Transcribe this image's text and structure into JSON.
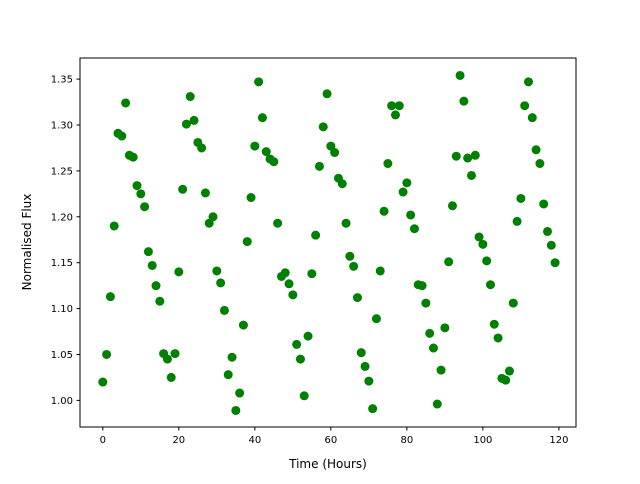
{
  "chart_data": {
    "type": "scatter",
    "title": "",
    "xlabel": "Time (Hours)",
    "ylabel": "Normalised Flux",
    "xlim": [
      -6,
      124.5
    ],
    "ylim": [
      0.971,
      1.373
    ],
    "xticks": [
      0,
      20,
      40,
      60,
      80,
      100,
      120
    ],
    "yticks": [
      1.0,
      1.05,
      1.1,
      1.15,
      1.2,
      1.25,
      1.3,
      1.35
    ],
    "xtick_labels": [
      "0",
      "20",
      "40",
      "60",
      "80",
      "100",
      "120"
    ],
    "ytick_labels": [
      "1.00",
      "1.05",
      "1.10",
      "1.15",
      "1.20",
      "1.25",
      "1.30",
      "1.35"
    ],
    "grid": false,
    "marker_color": "#008000",
    "x_start": 0,
    "x_step": 1,
    "y": [
      1.02,
      1.05,
      1.113,
      1.19,
      1.291,
      1.288,
      1.324,
      1.267,
      1.265,
      1.234,
      1.225,
      1.211,
      1.162,
      1.147,
      1.125,
      1.108,
      1.051,
      1.045,
      1.025,
      1.051,
      1.14,
      1.23,
      1.301,
      1.331,
      1.305,
      1.281,
      1.275,
      1.226,
      1.193,
      1.2,
      1.141,
      1.128,
      1.098,
      1.028,
      1.047,
      0.989,
      1.008,
      1.082,
      1.173,
      1.221,
      1.277,
      1.347,
      1.308,
      1.271,
      1.263,
      1.26,
      1.193,
      1.135,
      1.139,
      1.127,
      1.115,
      1.061,
      1.045,
      1.005,
      1.07,
      1.138,
      1.18,
      1.255,
      1.298,
      1.334,
      1.277,
      1.27,
      1.242,
      1.236,
      1.193,
      1.157,
      1.146,
      1.112,
      1.052,
      1.037,
      1.021,
      0.991,
      1.089,
      1.141,
      1.206,
      1.258,
      1.321,
      1.311,
      1.321,
      1.227,
      1.237,
      1.202,
      1.187,
      1.126,
      1.125,
      1.106,
      1.073,
      1.057,
      0.996,
      1.033,
      1.079,
      1.151,
      1.212,
      1.266,
      1.354,
      1.326,
      1.264,
      1.245,
      1.267,
      1.178,
      1.17,
      1.152,
      1.126,
      1.083,
      1.068,
      1.024,
      1.022,
      1.032,
      1.106,
      1.195,
      1.22,
      1.321,
      1.347,
      1.308,
      1.273,
      1.258,
      1.214,
      1.184,
      1.169,
      1.15
    ]
  }
}
